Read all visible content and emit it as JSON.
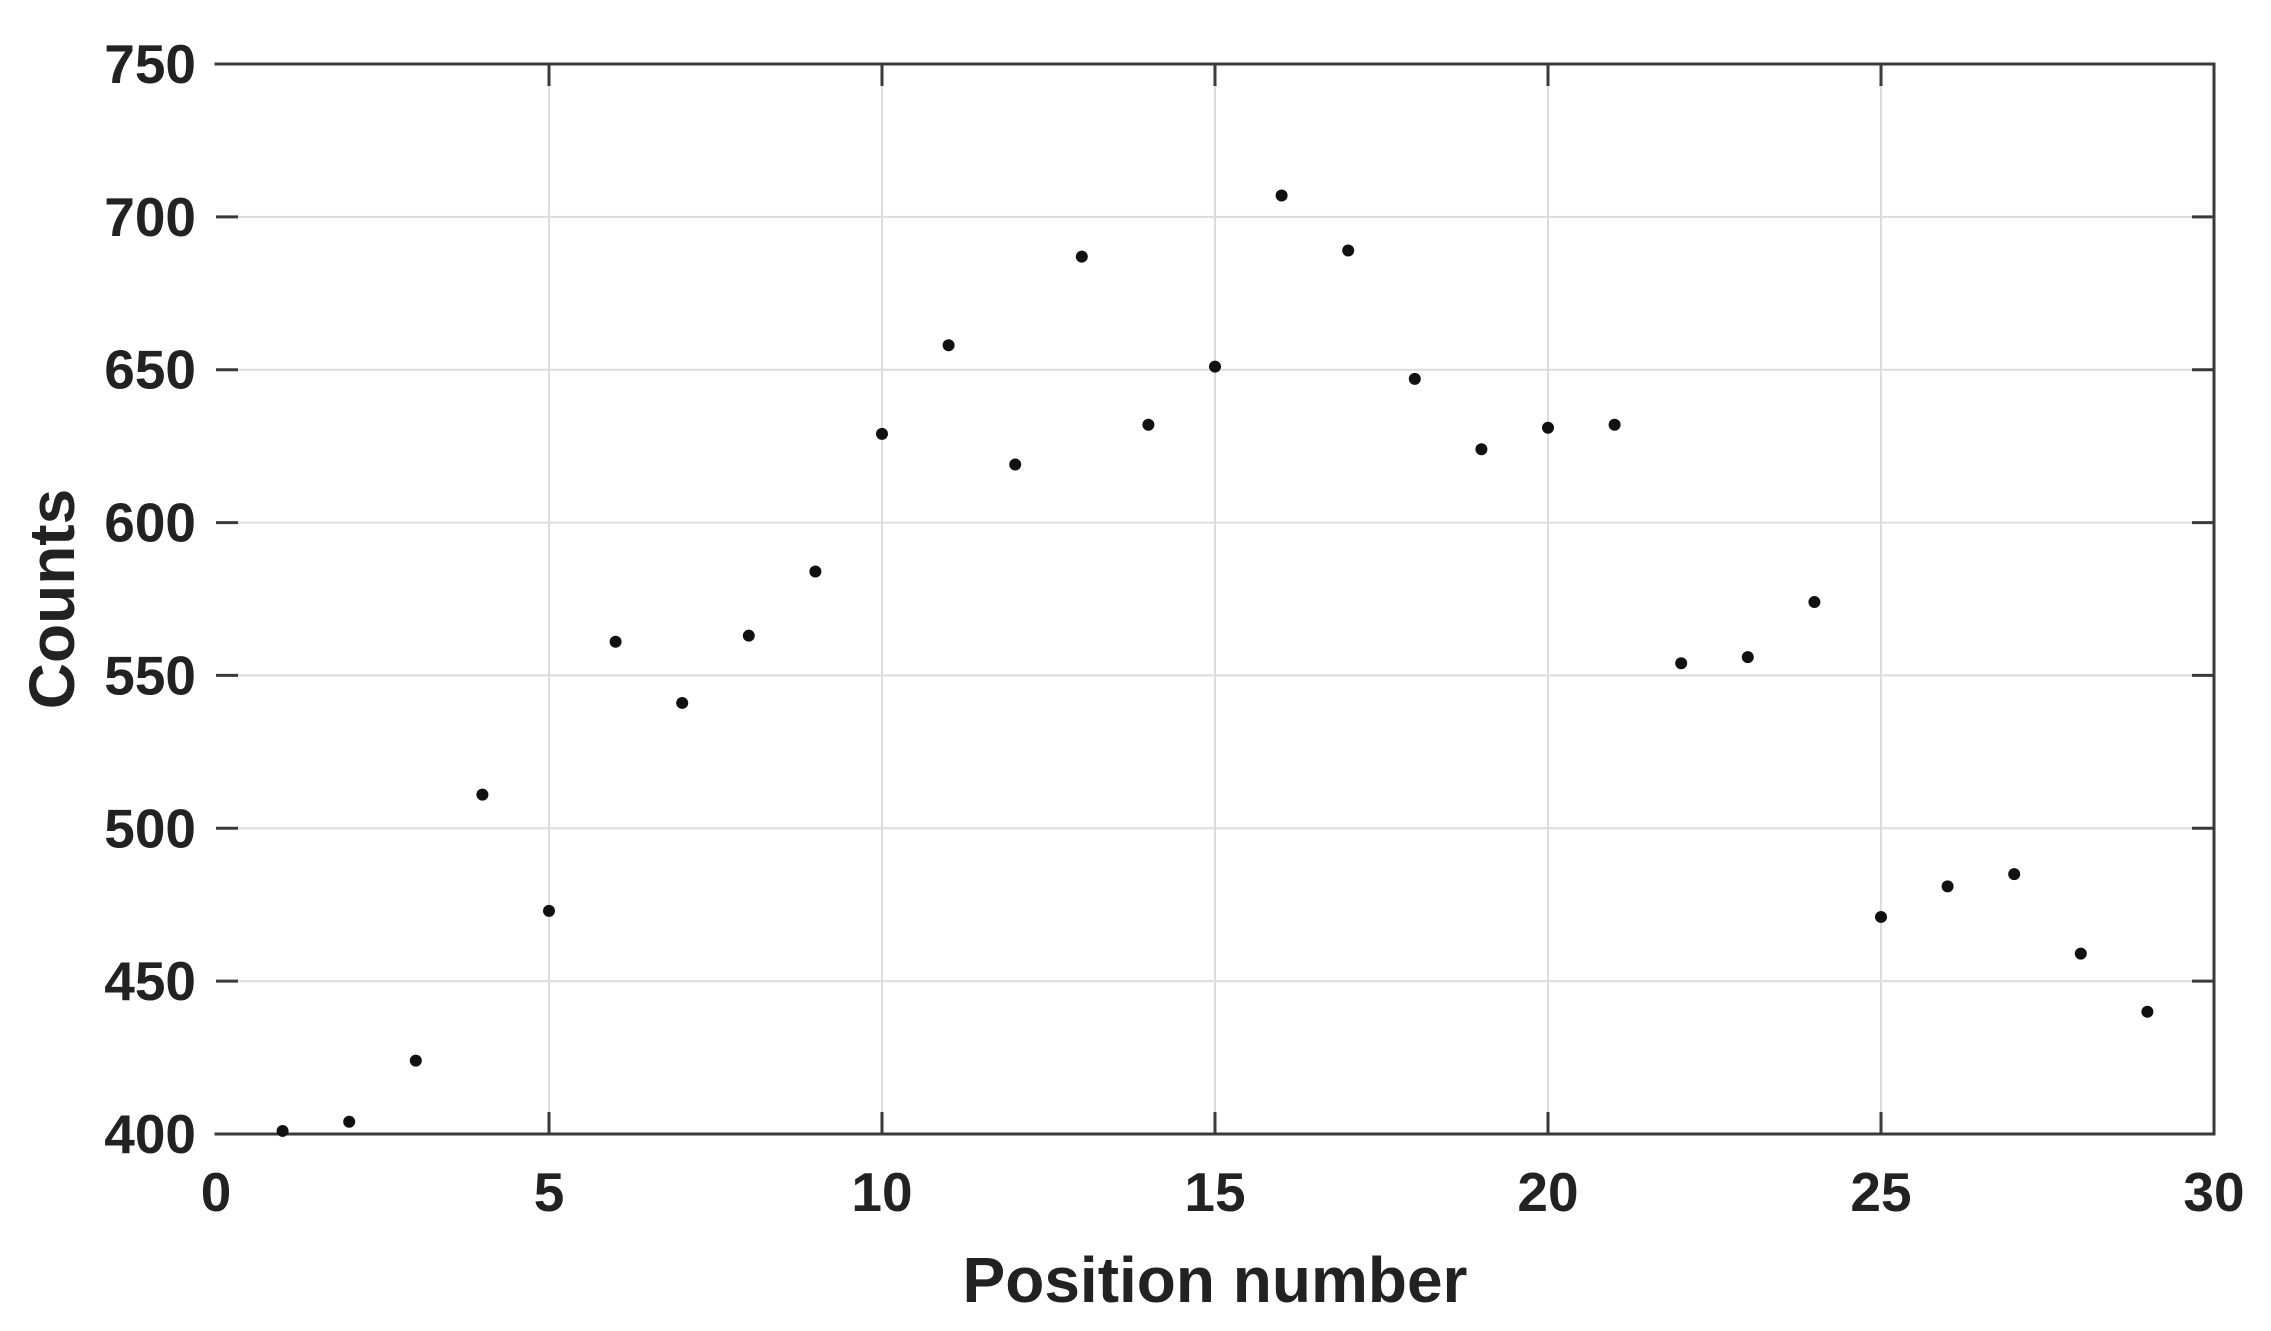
{
  "chart_data": {
    "type": "scatter",
    "title": "",
    "xlabel": "Position number",
    "ylabel": "Counts",
    "series": [
      {
        "name": "counts",
        "x": [
          1,
          2,
          3,
          4,
          5,
          6,
          7,
          8,
          9,
          10,
          11,
          12,
          13,
          14,
          15,
          16,
          17,
          18,
          19,
          20,
          21,
          22,
          23,
          24,
          25,
          26,
          27,
          28,
          29
        ],
        "y": [
          401,
          404,
          424,
          511,
          473,
          561,
          541,
          563,
          584,
          629,
          658,
          619,
          687,
          632,
          651,
          707,
          689,
          647,
          624,
          631,
          632,
          554,
          556,
          574,
          471,
          481,
          485,
          459,
          440
        ]
      }
    ],
    "xlim": [
      0,
      30
    ],
    "ylim": [
      400,
      750
    ],
    "xticks": [
      0,
      5,
      10,
      15,
      20,
      25,
      30
    ],
    "yticks": [
      400,
      450,
      500,
      550,
      600,
      650,
      700,
      750
    ],
    "grid": true,
    "legend": "none",
    "style": {
      "background_color": "#ffffff",
      "grid_color": "#dcdcdc",
      "axis_color": "#3a3a3a",
      "text_color": "#222222",
      "marker_color": "#111111",
      "marker_shape": "circle",
      "marker_radius": 6,
      "tick_direction": "in",
      "box": "top-right-bottom",
      "tick_font_size": 55,
      "label_font_size": 64
    }
  }
}
